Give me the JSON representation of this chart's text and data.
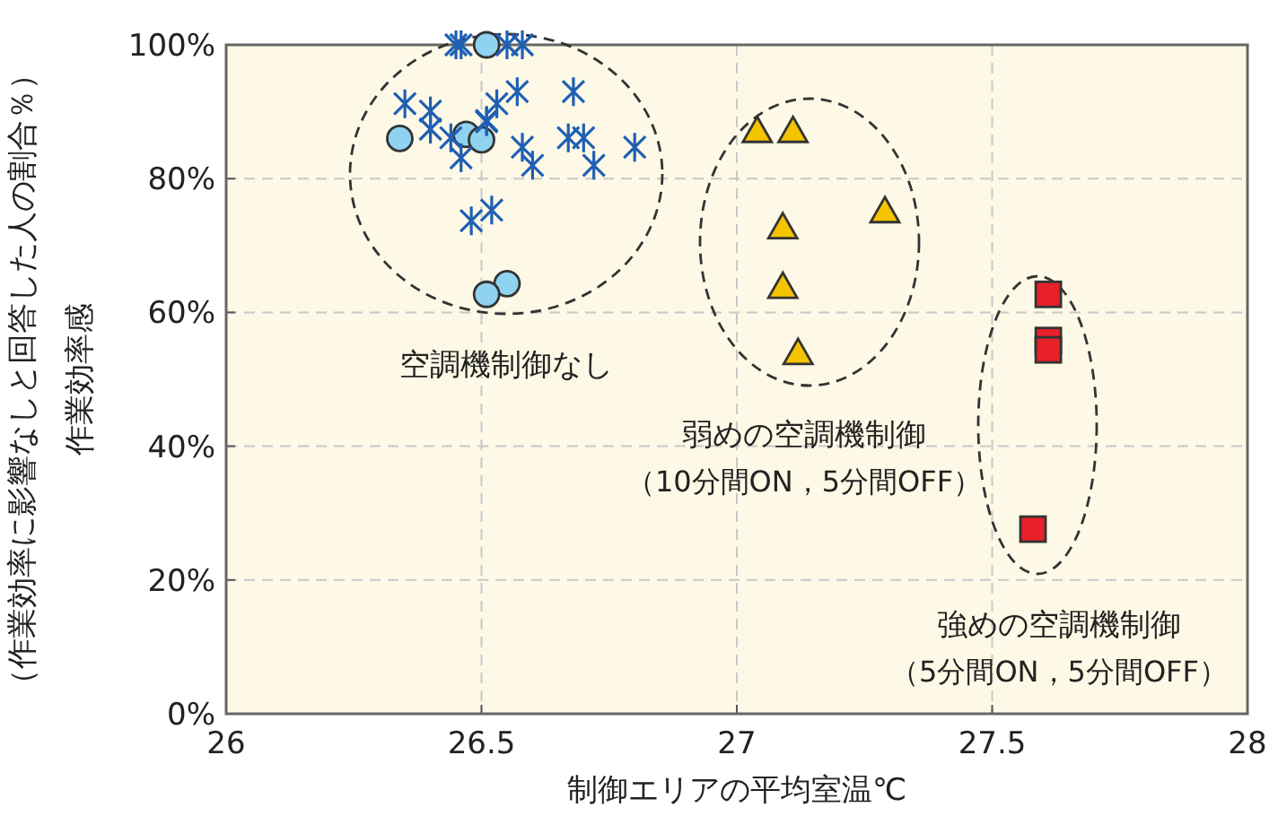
{
  "chart_data": {
    "type": "scatter",
    "xlabel": "制御エリアの平均室温℃",
    "ylabel": "作業効率感（作業効率に影響なしと回答した人の割合％）",
    "xlim": [
      26,
      28
    ],
    "ylim": [
      0,
      100
    ],
    "xticks": [
      26,
      26.5,
      27,
      27.5,
      28
    ],
    "yticks": [
      {
        "value": 0,
        "label": "0%"
      },
      {
        "value": 20,
        "label": "20%"
      },
      {
        "value": 40,
        "label": "40%"
      },
      {
        "value": 60,
        "label": "60%"
      },
      {
        "value": 80,
        "label": "80%"
      },
      {
        "value": 100,
        "label": "100%"
      }
    ],
    "grid": true,
    "series": [
      {
        "color": "#8fd3f0",
        "marker": "circle",
        "x": [
          26.34,
          26.47,
          26.5,
          26.51,
          26.55,
          26.51
        ],
        "values": [
          86,
          86.6,
          85.8,
          100,
          64.3,
          62.7
        ]
      },
      {
        "color": "#1f5fb4",
        "marker": "cross",
        "x": [
          26.45,
          26.46,
          26.55,
          26.58,
          26.35,
          26.4,
          26.4,
          26.44,
          26.46,
          26.51,
          26.53,
          26.51,
          26.57,
          26.68,
          26.67,
          26.7,
          26.58,
          26.6,
          26.72,
          26.8,
          26.52,
          26.48
        ],
        "values": [
          100,
          100,
          100,
          100,
          91.2,
          90.1,
          87.4,
          86.1,
          83.1,
          88.7,
          91.2,
          88.5,
          93,
          93,
          86.1,
          86.1,
          84.7,
          82,
          82,
          84.7,
          75.3,
          73.7
        ]
      },
      {
        "color": "#f5c400",
        "marker": "triangle",
        "x": [
          27.04,
          27.11,
          27.29,
          27.09,
          27.09,
          27.12
        ],
        "values": [
          87.1,
          87.1,
          75.1,
          72.7,
          63.8,
          53.9
        ]
      },
      {
        "color": "#e8202a",
        "marker": "square",
        "x": [
          27.61,
          27.61,
          27.61,
          27.58
        ],
        "values": [
          62.7,
          55.8,
          54.4,
          27.6
        ]
      }
    ],
    "annotations": [
      "空調機制御なし",
      "弱めの空調機制御",
      "（10分間ON，5分間OFF）",
      "強めの空調機制御",
      "（5分間ON，5分間OFF）"
    ]
  }
}
